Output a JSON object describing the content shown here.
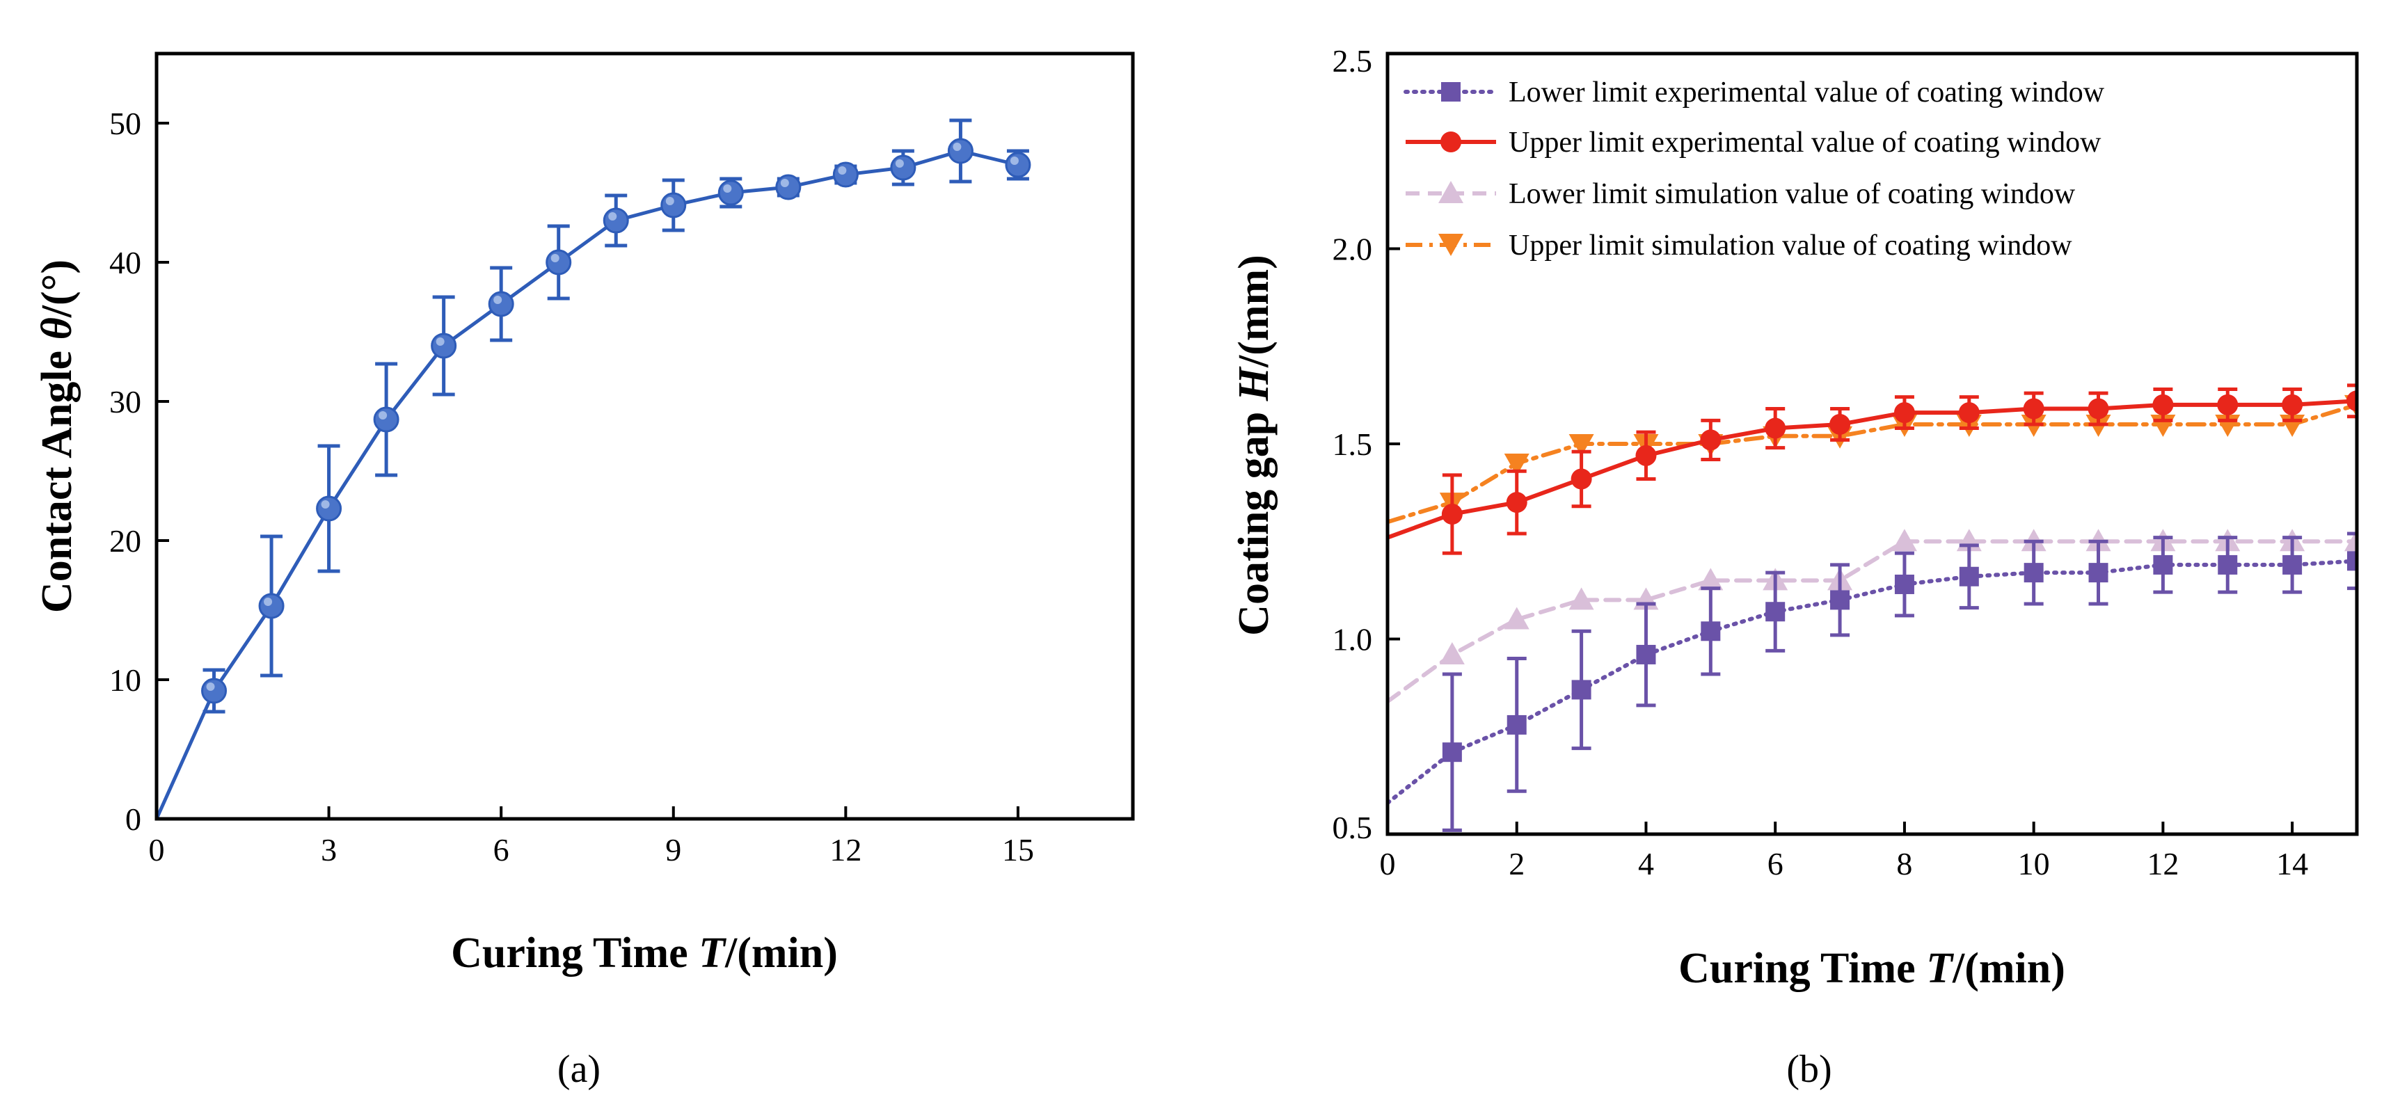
{
  "chart_data": [
    {
      "panel": "a",
      "type": "line",
      "title": "",
      "xlabel_prefix": "Curing Time ",
      "xlabel_var": "T",
      "xlabel_unit": "/(min)",
      "ylabel_prefix": "Contact Angle ",
      "ylabel_var": "θ",
      "ylabel_unit": "/(°)",
      "xlim": [
        0,
        17
      ],
      "ylim": [
        0,
        55
      ],
      "xticks": [
        0,
        3,
        6,
        9,
        12,
        15
      ],
      "yticks": [
        0,
        10,
        20,
        30,
        40,
        50
      ],
      "color": "#2e5cb8",
      "series": [
        {
          "name": "Contact Angle",
          "x": [
            0,
            1,
            2,
            3,
            4,
            5,
            6,
            7,
            8,
            9,
            10,
            11,
            12,
            13,
            14,
            15
          ],
          "y": [
            0,
            9.2,
            15.3,
            22.3,
            28.7,
            34.0,
            37.0,
            40.0,
            43.0,
            44.1,
            45.0,
            45.4,
            46.3,
            46.8,
            48.0,
            47.0
          ],
          "err": [
            0,
            1.5,
            5.0,
            4.5,
            4.0,
            3.5,
            2.6,
            2.6,
            1.8,
            1.8,
            1.0,
            0.6,
            0.6,
            1.2,
            2.2,
            1.0
          ]
        }
      ]
    },
    {
      "panel": "b",
      "type": "line",
      "title": "",
      "xlabel_prefix": "Curing Time ",
      "xlabel_var": "T",
      "xlabel_unit": "/(min)",
      "ylabel_prefix": "Coating gap ",
      "ylabel_var": "H",
      "ylabel_unit": "/(mm)",
      "xlim": [
        0,
        15
      ],
      "ylim": [
        0.5,
        2.5
      ],
      "xticks": [
        0,
        2,
        4,
        6,
        8,
        10,
        12,
        14
      ],
      "yticks": [
        0.5,
        1.0,
        1.5,
        2.0,
        2.5
      ],
      "ytick_labels": [
        "0.5",
        "1.0",
        "1.5",
        "2.0",
        "2.5"
      ],
      "legend_position": "top",
      "series": [
        {
          "name": "Lower limit experimental value of coating window",
          "color": "#6a52a8",
          "dash": "dotted",
          "marker": "square",
          "x": [
            1,
            2,
            3,
            4,
            5,
            6,
            7,
            8,
            9,
            10,
            11,
            12,
            13,
            14,
            15
          ],
          "y": [
            0.71,
            0.78,
            0.87,
            0.96,
            1.02,
            1.07,
            1.1,
            1.14,
            1.16,
            1.17,
            1.17,
            1.19,
            1.19,
            1.19,
            1.2
          ],
          "err": [
            0.2,
            0.17,
            0.15,
            0.13,
            0.11,
            0.1,
            0.09,
            0.08,
            0.08,
            0.08,
            0.08,
            0.07,
            0.07,
            0.07,
            0.07
          ],
          "curve_x": [
            0,
            1,
            2,
            3,
            4,
            5,
            6,
            7,
            8,
            9,
            10,
            11,
            12,
            13,
            14,
            15
          ],
          "curve_y": [
            0.58,
            0.71,
            0.78,
            0.87,
            0.96,
            1.02,
            1.07,
            1.1,
            1.14,
            1.16,
            1.17,
            1.17,
            1.19,
            1.19,
            1.19,
            1.2
          ]
        },
        {
          "name": "Upper limit experimental value of coating window",
          "color": "#e8261b",
          "dash": "solid",
          "marker": "circle",
          "x": [
            1,
            2,
            3,
            4,
            5,
            6,
            7,
            8,
            9,
            10,
            11,
            12,
            13,
            14,
            15
          ],
          "y": [
            1.32,
            1.35,
            1.41,
            1.47,
            1.51,
            1.54,
            1.55,
            1.58,
            1.58,
            1.59,
            1.59,
            1.6,
            1.6,
            1.6,
            1.61
          ],
          "err": [
            0.1,
            0.08,
            0.07,
            0.06,
            0.05,
            0.05,
            0.04,
            0.04,
            0.04,
            0.04,
            0.04,
            0.04,
            0.04,
            0.04,
            0.04
          ],
          "curve_x": [
            0,
            1,
            2,
            3,
            4,
            5,
            6,
            7,
            8,
            9,
            10,
            11,
            12,
            13,
            14,
            15
          ],
          "curve_y": [
            1.26,
            1.32,
            1.35,
            1.41,
            1.47,
            1.51,
            1.54,
            1.55,
            1.58,
            1.58,
            1.59,
            1.59,
            1.6,
            1.6,
            1.6,
            1.61
          ]
        },
        {
          "name": "Lower limit simulation value of coating window",
          "color": "#d9bfd9",
          "dash": "dashed",
          "marker": "triangle-up",
          "x": [
            1,
            2,
            3,
            4,
            5,
            6,
            7,
            8,
            9,
            10,
            11,
            12,
            13,
            14,
            15
          ],
          "y": [
            0.96,
            1.05,
            1.1,
            1.1,
            1.15,
            1.15,
            1.15,
            1.25,
            1.25,
            1.25,
            1.25,
            1.25,
            1.25,
            1.25,
            1.25
          ],
          "curve_x": [
            0,
            1,
            2,
            3,
            4,
            5,
            6,
            7,
            8,
            9,
            10,
            11,
            12,
            13,
            14,
            15
          ],
          "curve_y": [
            0.84,
            0.96,
            1.05,
            1.1,
            1.1,
            1.15,
            1.15,
            1.15,
            1.25,
            1.25,
            1.25,
            1.25,
            1.25,
            1.25,
            1.25,
            1.25
          ]
        },
        {
          "name": "Upper limit simulation value of coating window",
          "color": "#f58220",
          "dash": "dashdot",
          "marker": "triangle-down",
          "x": [
            1,
            2,
            3,
            4,
            5,
            6,
            7,
            8,
            9,
            10,
            11,
            12,
            13,
            14,
            15
          ],
          "y": [
            1.35,
            1.45,
            1.5,
            1.5,
            1.5,
            1.52,
            1.52,
            1.55,
            1.55,
            1.55,
            1.55,
            1.55,
            1.55,
            1.55,
            1.6
          ],
          "curve_x": [
            0,
            1,
            2,
            3,
            4,
            5,
            6,
            7,
            8,
            9,
            10,
            11,
            12,
            13,
            14,
            15
          ],
          "curve_y": [
            1.3,
            1.35,
            1.45,
            1.5,
            1.5,
            1.5,
            1.52,
            1.52,
            1.55,
            1.55,
            1.55,
            1.55,
            1.55,
            1.55,
            1.55,
            1.6
          ]
        }
      ]
    }
  ],
  "captions": {
    "a": "(a)",
    "b": "(b)"
  }
}
